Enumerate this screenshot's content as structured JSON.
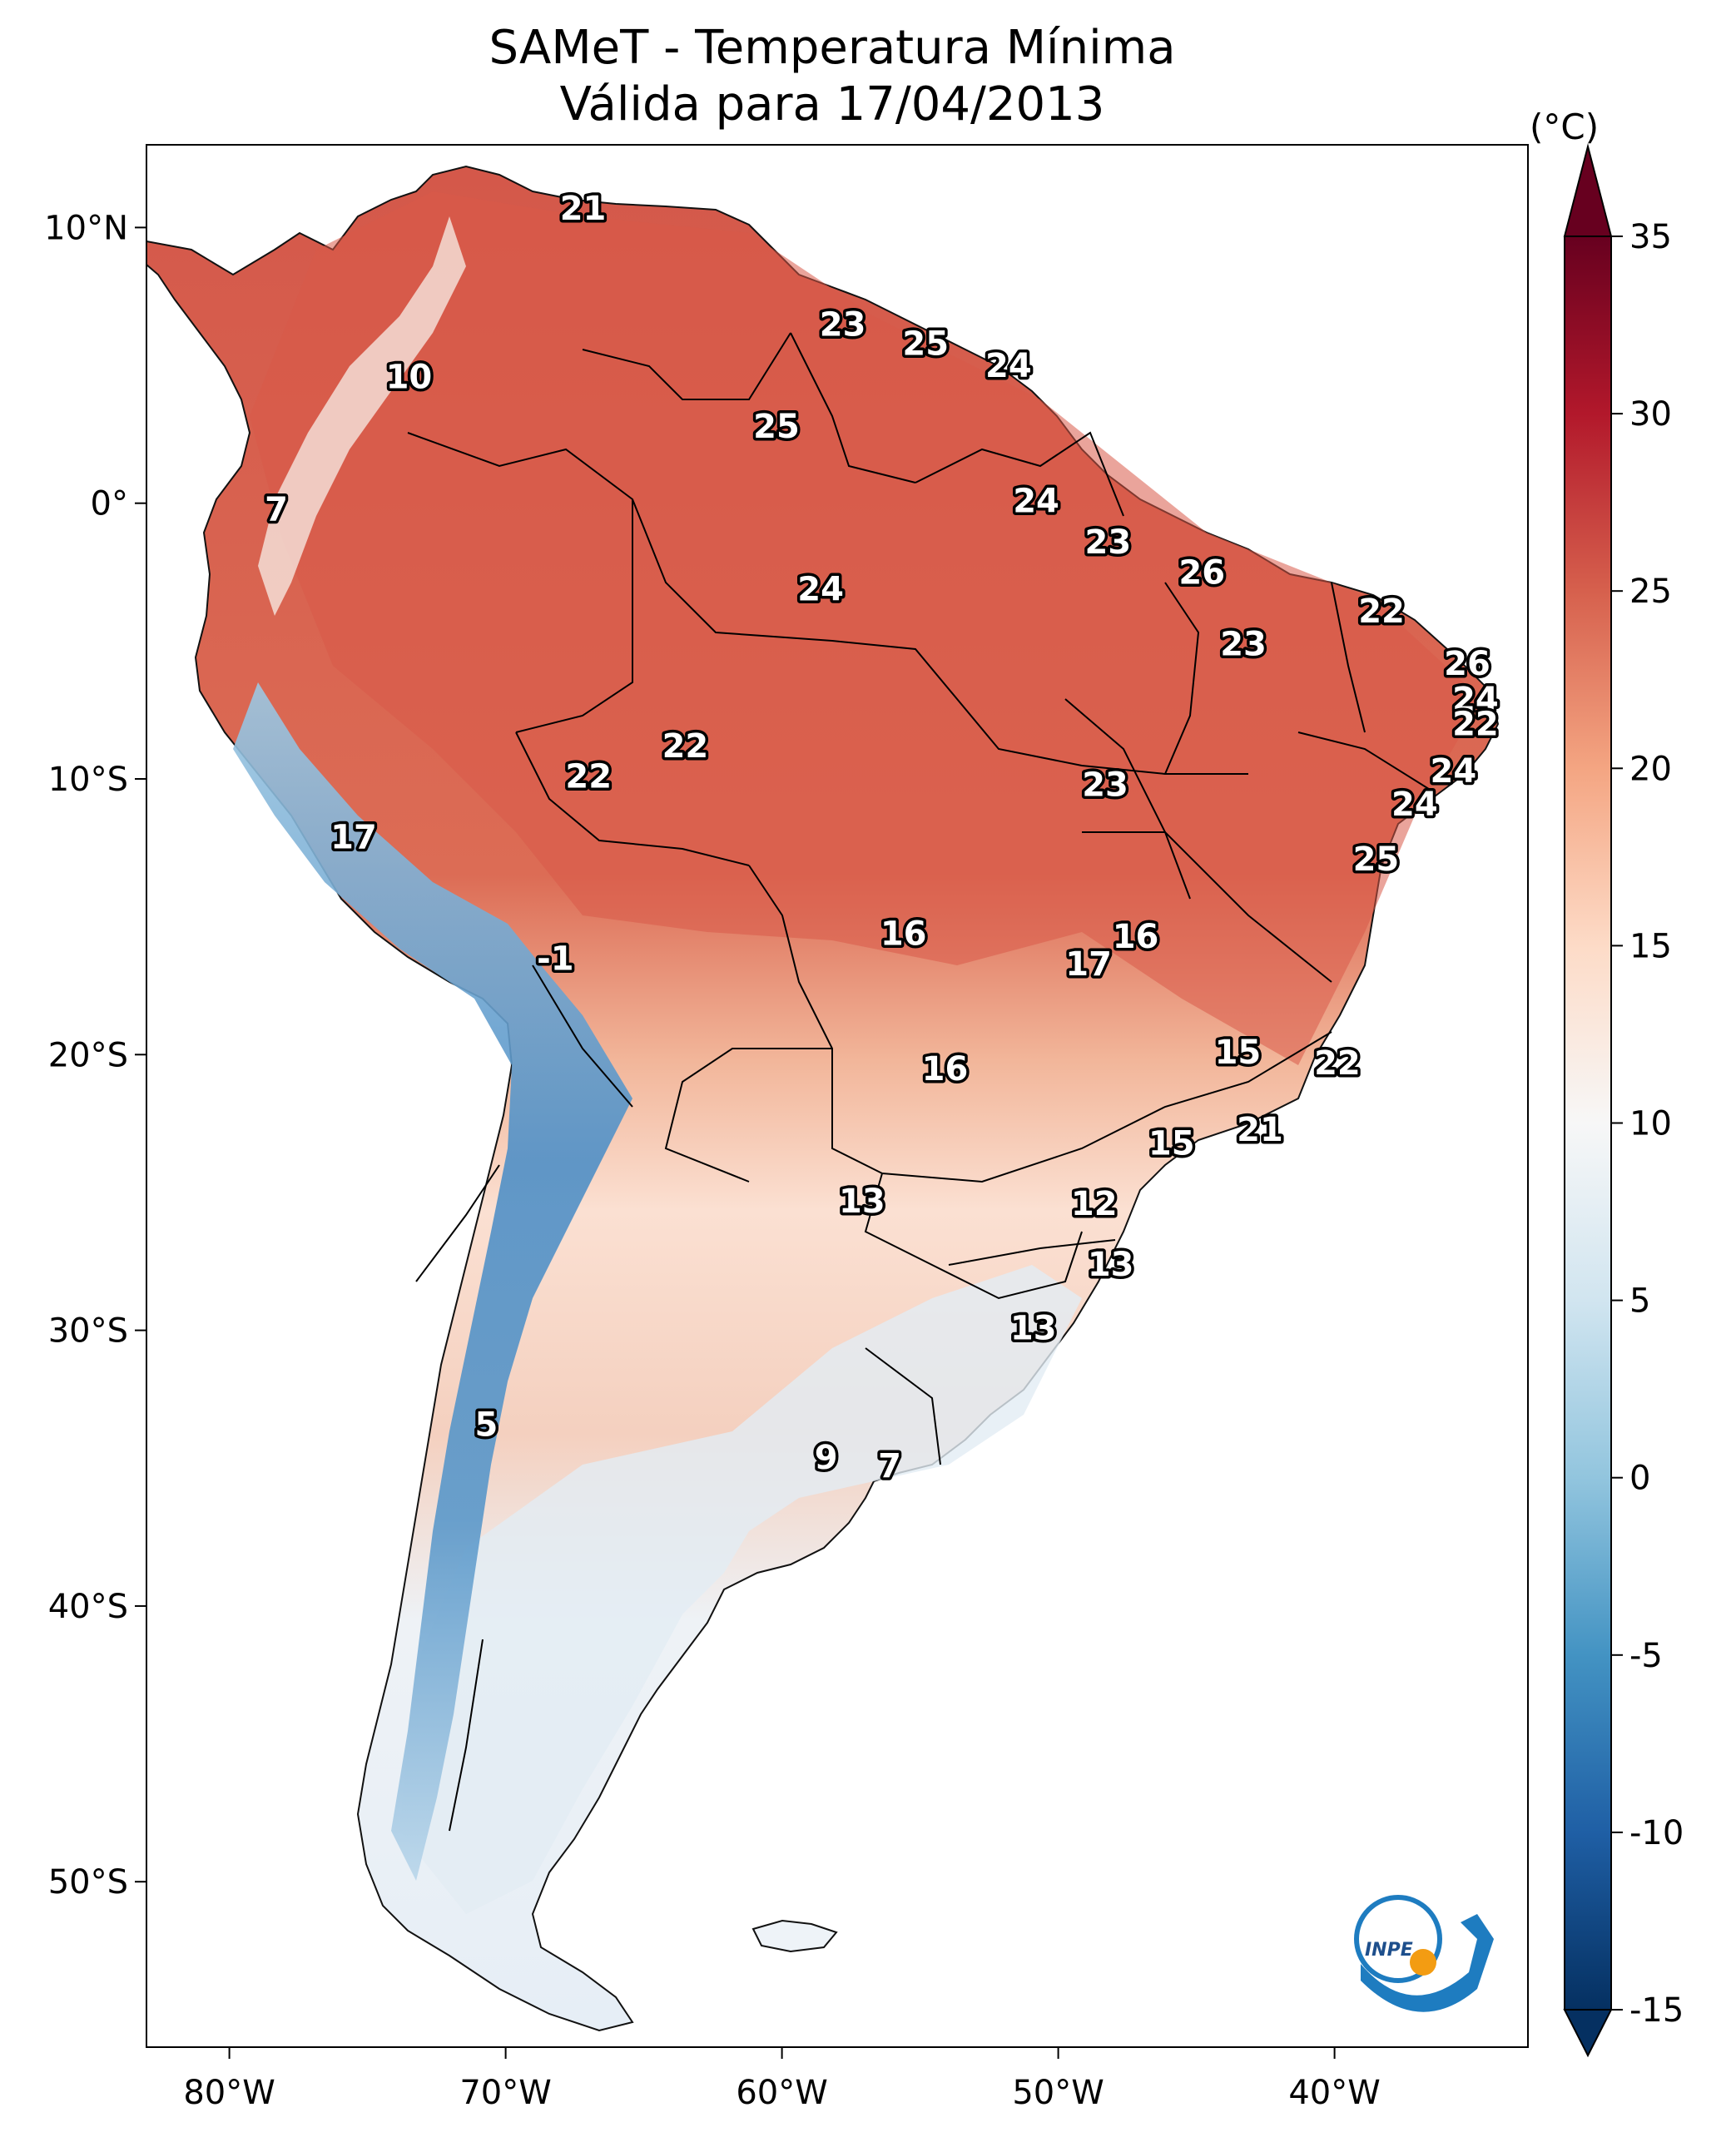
{
  "title": {
    "line1": "SAMeT - Temperatura Mínima",
    "line2": "Válida para 17/04/2013"
  },
  "colorbar": {
    "unit": "(°C)",
    "ticks": [
      "35",
      "30",
      "25",
      "20",
      "15",
      "10",
      "5",
      "0",
      "-5",
      "-10",
      "-15"
    ],
    "min": -15,
    "max": 35
  },
  "axes": {
    "lon_ticks": [
      "80°W",
      "70°W",
      "60°W",
      "50°W",
      "40°W"
    ],
    "lat_ticks": [
      "10°N",
      "0°",
      "10°S",
      "20°S",
      "30°S",
      "40°S",
      "50°S"
    ],
    "lon_range": [
      -83,
      -33
    ],
    "lat_range": [
      -56,
      13
    ]
  },
  "station_labels": [
    {
      "v": "21",
      "lon": -67.2,
      "lat": 10.7
    },
    {
      "v": "23",
      "lon": -57.8,
      "lat": 6.5
    },
    {
      "v": "25",
      "lon": -54.8,
      "lat": 5.8
    },
    {
      "v": "24",
      "lon": -51.8,
      "lat": 5.0
    },
    {
      "v": "10",
      "lon": -73.5,
      "lat": 4.6
    },
    {
      "v": "25",
      "lon": -60.2,
      "lat": 2.8
    },
    {
      "v": "7",
      "lon": -78.3,
      "lat": -0.2
    },
    {
      "v": "24",
      "lon": -50.8,
      "lat": 0.1
    },
    {
      "v": "23",
      "lon": -48.2,
      "lat": -1.4
    },
    {
      "v": "26",
      "lon": -44.8,
      "lat": -2.5
    },
    {
      "v": "24",
      "lon": -58.6,
      "lat": -3.1
    },
    {
      "v": "22",
      "lon": -38.3,
      "lat": -3.9
    },
    {
      "v": "23",
      "lon": -43.3,
      "lat": -5.1
    },
    {
      "v": "26",
      "lon": -35.2,
      "lat": -5.8
    },
    {
      "v": "24",
      "lon": -34.9,
      "lat": -7.1
    },
    {
      "v": "22",
      "lon": -34.9,
      "lat": -8.0
    },
    {
      "v": "22",
      "lon": -63.5,
      "lat": -8.8
    },
    {
      "v": "24",
      "lon": -35.7,
      "lat": -9.7
    },
    {
      "v": "22",
      "lon": -67.0,
      "lat": -9.9
    },
    {
      "v": "23",
      "lon": -48.3,
      "lat": -10.2
    },
    {
      "v": "24",
      "lon": -37.1,
      "lat": -10.9
    },
    {
      "v": "17",
      "lon": -75.5,
      "lat": -12.1
    },
    {
      "v": "25",
      "lon": -38.5,
      "lat": -12.9
    },
    {
      "v": "16",
      "lon": -55.6,
      "lat": -15.6
    },
    {
      "v": "16",
      "lon": -47.2,
      "lat": -15.7
    },
    {
      "v": "17",
      "lon": -48.9,
      "lat": -16.7
    },
    {
      "v": "-1",
      "lon": -68.2,
      "lat": -16.5
    },
    {
      "v": "16",
      "lon": -54.1,
      "lat": -20.5
    },
    {
      "v": "15",
      "lon": -43.5,
      "lat": -19.9
    },
    {
      "v": "22",
      "lon": -39.9,
      "lat": -20.3
    },
    {
      "v": "21",
      "lon": -42.7,
      "lat": -22.7
    },
    {
      "v": "15",
      "lon": -45.9,
      "lat": -23.2
    },
    {
      "v": "13",
      "lon": -57.1,
      "lat": -25.3
    },
    {
      "v": "12",
      "lon": -48.7,
      "lat": -25.4
    },
    {
      "v": "13",
      "lon": -48.1,
      "lat": -27.6
    },
    {
      "v": "13",
      "lon": -50.9,
      "lat": -29.9
    },
    {
      "v": "5",
      "lon": -70.7,
      "lat": -33.4
    },
    {
      "v": "9",
      "lon": -58.4,
      "lat": -34.6
    },
    {
      "v": "7",
      "lon": -56.1,
      "lat": -34.9
    }
  ],
  "logo_text": "INPE"
}
